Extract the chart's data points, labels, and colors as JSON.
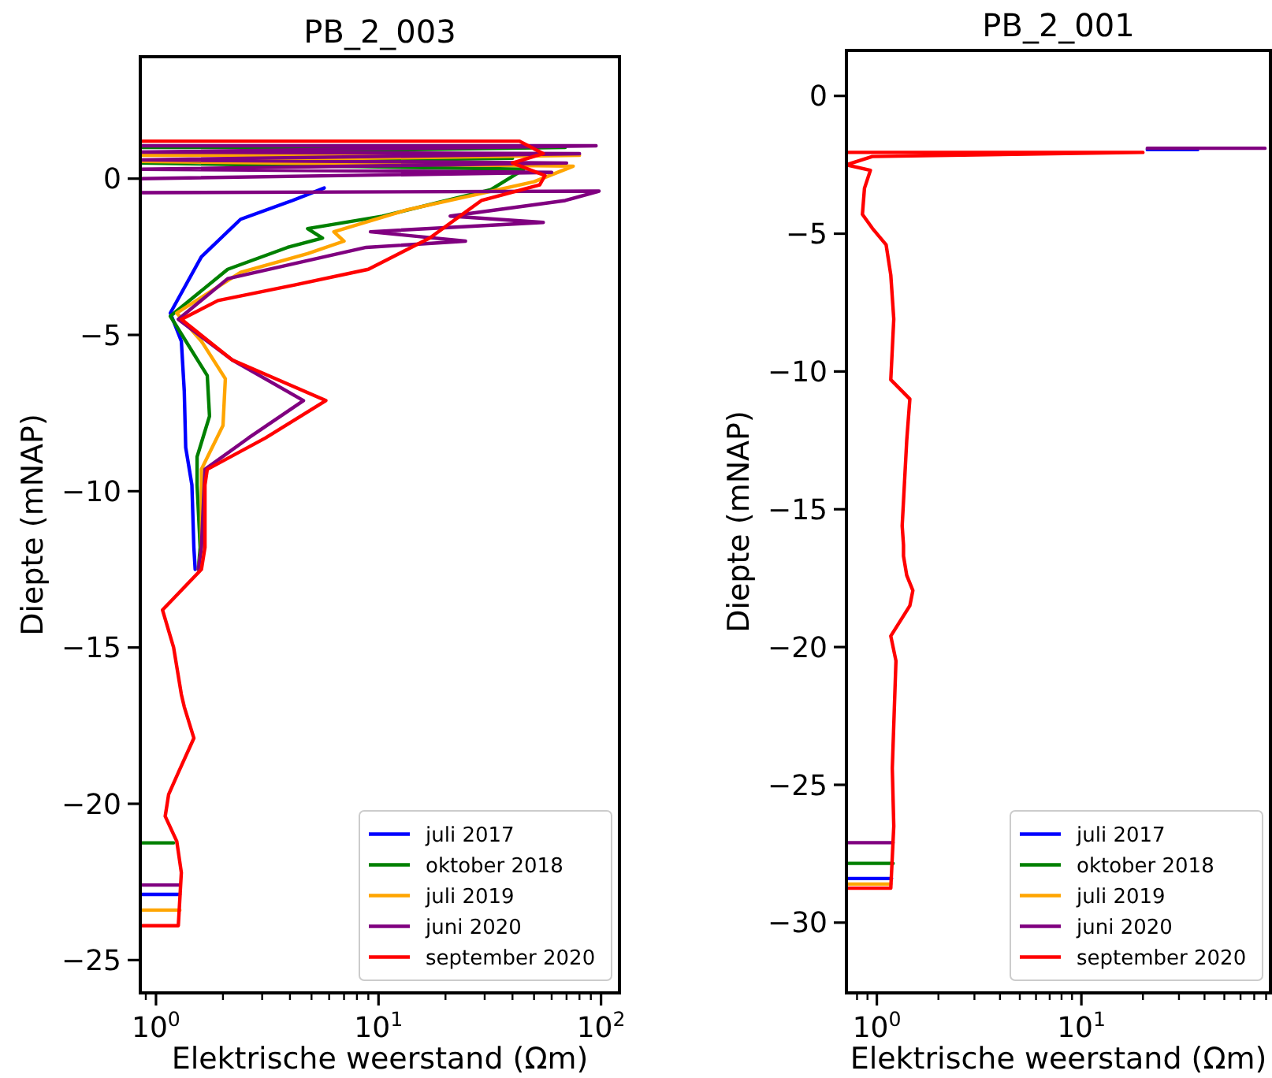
{
  "chart_data": [
    {
      "type": "line",
      "title": "PB_2_003",
      "xlabel": "Elektrische weerstand (Ωm)",
      "ylabel": "Diepte (mNAP)",
      "log": "x",
      "legend": "bottom right",
      "xlim": [
        0.85,
        121
      ],
      "ylim": [
        -26.05,
        3.9
      ],
      "xticks": [
        {
          "value": 0.9,
          "label": null
        },
        {
          "value": 1,
          "label": "10$^{0}$"
        },
        {
          "value": 2,
          "label": null
        },
        {
          "value": 3,
          "label": null
        },
        {
          "value": 4,
          "label": null
        },
        {
          "value": 5,
          "label": null
        },
        {
          "value": 6,
          "label": null
        },
        {
          "value": 7,
          "label": null
        },
        {
          "value": 8,
          "label": null
        },
        {
          "value": 9,
          "label": null
        },
        {
          "value": 10,
          "label": "10$^{1}$"
        },
        {
          "value": 20,
          "label": null
        },
        {
          "value": 30,
          "label": null
        },
        {
          "value": 40,
          "label": null
        },
        {
          "value": 50,
          "label": null
        },
        {
          "value": 60,
          "label": null
        },
        {
          "value": 70,
          "label": null
        },
        {
          "value": 80,
          "label": null
        },
        {
          "value": 90,
          "label": null
        },
        {
          "value": 100,
          "label": "10$^{2}$"
        }
      ],
      "yticks": [
        {
          "value": 0,
          "label": "0"
        },
        {
          "value": -5,
          "label": "−5"
        },
        {
          "value": -10,
          "label": "−10"
        },
        {
          "value": -15,
          "label": "−15"
        },
        {
          "value": -20,
          "label": "−20"
        },
        {
          "value": -25,
          "label": "−25"
        }
      ],
      "series": [
        {
          "name": "juli 2017",
          "color": "#0000ff",
          "x": [
            null,
            null,
            5.7,
            4.1,
            2.4,
            1.6,
            1.16,
            1.3,
            1.34,
            1.36,
            1.45,
            1.48,
            1.5,
            null,
            1.28,
            0.85
          ],
          "values": [
            null,
            null,
            -0.3,
            -0.7,
            -1.3,
            -2.5,
            -4.3,
            -5.2,
            -6.8,
            -8.6,
            -9.8,
            -11.8,
            -12.5,
            null,
            -22.9,
            -22.9
          ]
        },
        {
          "name": "oktober 2018",
          "color": "#008000",
          "x": [
            0.85,
            69,
            0.85,
            40,
            0.85,
            45,
            32,
            10.4,
            4.8,
            5.6,
            3.9,
            2.1,
            1.16,
            1.7,
            1.74,
            1.53,
            1.53,
            1.58,
            1.55,
            null,
            1.2,
            0.85
          ],
          "values": [
            1.0,
            1.0,
            0.8,
            0.65,
            0.5,
            0.3,
            -0.35,
            -1.2,
            -1.6,
            -1.9,
            -2.2,
            -2.9,
            -4.4,
            -6.3,
            -7.6,
            -8.9,
            -9.8,
            -11.8,
            -12.5,
            null,
            -21.25,
            -21.25
          ]
        },
        {
          "name": "juli 2019",
          "color": "#ffa500",
          "x": [
            0.85,
            80,
            0.85,
            75,
            50,
            13.4,
            6.3,
            7,
            4.8,
            2.4,
            1.24,
            1.6,
            2.05,
            2.0,
            1.6,
            1.6,
            1.55,
            null,
            1.28,
            0.85
          ],
          "values": [
            0.75,
            0.75,
            0.55,
            0.4,
            -0.1,
            -1.0,
            -1.7,
            -2.0,
            -2.4,
            -3.0,
            -4.3,
            -5.2,
            -6.4,
            -7.9,
            -9.3,
            -11.8,
            -12.5,
            null,
            -23.4,
            -23.4
          ]
        },
        {
          "name": "juni 2020",
          "color": "#800080",
          "x": [
            0.85,
            95,
            0.85,
            80,
            0.85,
            70,
            0.85,
            60,
            0.85,
            0.85,
            98,
            69,
            21,
            55,
            9.2,
            24.6,
            8.8,
            2.1,
            1.26,
            2.2,
            4.6,
            2.6,
            1.66,
            1.6,
            1.55,
            null,
            1.28,
            0.85
          ],
          "values": [
            1.05,
            1.05,
            0.85,
            0.8,
            0.6,
            0.5,
            0.3,
            0.2,
            0.0,
            -0.45,
            -0.4,
            -0.7,
            -1.2,
            -1.4,
            -1.7,
            -2.0,
            -2.2,
            -3.2,
            -4.5,
            -5.8,
            -7.1,
            -8.3,
            -9.3,
            -11.8,
            -12.5,
            null,
            -22.6,
            -22.6
          ]
        },
        {
          "name": "september 2020",
          "color": "#ff0000",
          "x": [
            0.85,
            43,
            55,
            40,
            56,
            53,
            29,
            17,
            9,
            4.2,
            1.9,
            1.3,
            2.2,
            5.8,
            3.1,
            1.7,
            1.66,
            1.66,
            1.6,
            1.07,
            1.2,
            1.3,
            1.34,
            1.48,
            1.26,
            1.14,
            1.1,
            1.24,
            1.3,
            1.26,
            0.85
          ],
          "values": [
            1.2,
            1.2,
            0.8,
            0.5,
            0.1,
            -0.2,
            -0.7,
            -1.9,
            -2.9,
            -3.4,
            -3.9,
            -4.5,
            -5.8,
            -7.1,
            -8.3,
            -9.3,
            -9.8,
            -11.8,
            -12.5,
            -13.8,
            -15,
            -16.5,
            -16.9,
            -17.9,
            -19,
            -19.7,
            -20.4,
            -21.2,
            -22.2,
            -23.9,
            -23.9
          ]
        }
      ]
    },
    {
      "type": "line",
      "title": "PB_2_001",
      "xlabel": "Elektrische weerstand (Ωm)",
      "ylabel": "Diepte (mNAP)",
      "log": "x",
      "legend": "bottom right",
      "xlim": [
        0.71,
        84
      ],
      "ylim": [
        -32.55,
        1.65
      ],
      "xticks": [
        {
          "value": 0.8,
          "label": null
        },
        {
          "value": 0.9,
          "label": null
        },
        {
          "value": 1,
          "label": "10$^{0}$"
        },
        {
          "value": 2,
          "label": null
        },
        {
          "value": 3,
          "label": null
        },
        {
          "value": 4,
          "label": null
        },
        {
          "value": 5,
          "label": null
        },
        {
          "value": 6,
          "label": null
        },
        {
          "value": 7,
          "label": null
        },
        {
          "value": 8,
          "label": null
        },
        {
          "value": 9,
          "label": null
        },
        {
          "value": 10,
          "label": "10$^{1}$"
        },
        {
          "value": 20,
          "label": null
        },
        {
          "value": 30,
          "label": null
        },
        {
          "value": 40,
          "label": null
        },
        {
          "value": 50,
          "label": null
        },
        {
          "value": 60,
          "label": null
        },
        {
          "value": 70,
          "label": null
        },
        {
          "value": 80,
          "label": null
        }
      ],
      "yticks": [
        {
          "value": 0,
          "label": "0"
        },
        {
          "value": -5,
          "label": "−5"
        },
        {
          "value": -10,
          "label": "−10"
        },
        {
          "value": -15,
          "label": "−15"
        },
        {
          "value": -20,
          "label": "−20"
        },
        {
          "value": -25,
          "label": "−25"
        },
        {
          "value": -30,
          "label": "−30"
        }
      ],
      "series": [
        {
          "name": "juli 2017",
          "color": "#0000ff",
          "x": [
            21,
            37,
            null,
            1.18,
            0.71
          ],
          "values": [
            -1.95,
            -1.95,
            null,
            -28.4,
            -28.4
          ]
        },
        {
          "name": "oktober 2018",
          "color": "#008000",
          "x": [
            1.2,
            0.71
          ],
          "values": [
            -27.85,
            -27.85
          ]
        },
        {
          "name": "juli 2019",
          "color": "#ffa500",
          "x": [
            1.17,
            0.71
          ],
          "values": [
            -28.6,
            -28.6
          ]
        },
        {
          "name": "juni 2020",
          "color": "#800080",
          "x": [
            21,
            79,
            null,
            1.2,
            0.71
          ],
          "values": [
            -1.9,
            -1.9,
            null,
            -27.1,
            -27.1
          ]
        },
        {
          "name": "september 2020",
          "color": "#ff0000",
          "x": [
            0.71,
            20,
            0.95,
            0.71,
            0.93,
            0.87,
            0.85,
            0.95,
            1.11,
            1.17,
            1.21,
            1.17,
            1.45,
            1.4,
            1.35,
            1.33,
            1.35,
            1.35,
            1.4,
            1.5,
            1.45,
            1.17,
            1.24,
            1.19,
            1.21,
            1.17,
            0.71
          ],
          "values": [
            -2.05,
            -2.05,
            -2.2,
            -2.5,
            -2.7,
            -3.35,
            -4.3,
            -4.8,
            -5.4,
            -6.5,
            -8.1,
            -10.3,
            -11.0,
            -12.5,
            -14.7,
            -15.6,
            -16.3,
            -16.7,
            -17.4,
            -17.95,
            -18.5,
            -19.6,
            -20.5,
            -24.4,
            -26.5,
            -28.75,
            -28.75
          ]
        }
      ]
    }
  ]
}
